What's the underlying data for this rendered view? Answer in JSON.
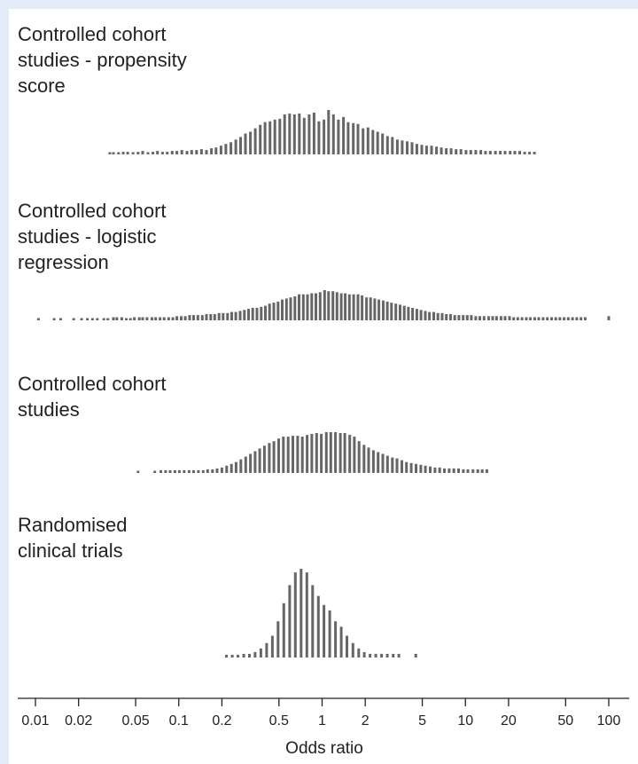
{
  "chart_data": {
    "type": "bar",
    "xlabel": "Odds ratio",
    "x_scale": "log",
    "xlim": [
      0.01,
      100
    ],
    "tick_labels": [
      "0.01",
      "0.02",
      "0.05",
      "0.1",
      "0.2",
      "0.5",
      "1",
      "2",
      "5",
      "10",
      "20",
      "50",
      "100"
    ],
    "tick_values": [
      0.01,
      0.02,
      0.05,
      0.1,
      0.2,
      0.5,
      1,
      2,
      5,
      10,
      20,
      50,
      100
    ],
    "bar_color": "#666666",
    "panels": [
      {
        "title": "Controlled cohort studies - propensity score",
        "title_lines": [
          "Controlled cohort",
          "studies - propensity",
          "score"
        ],
        "x": [
          0.033,
          0.035,
          0.038,
          0.041,
          0.044,
          0.048,
          0.052,
          0.056,
          0.061,
          0.066,
          0.071,
          0.077,
          0.083,
          0.09,
          0.097,
          0.105,
          0.114,
          0.123,
          0.133,
          0.144,
          0.156,
          0.169,
          0.182,
          0.197,
          0.213,
          0.231,
          0.25,
          0.27,
          0.292,
          0.316,
          0.342,
          0.37,
          0.4,
          0.433,
          0.468,
          0.507,
          0.548,
          0.593,
          0.641,
          0.694,
          0.75,
          0.812,
          0.878,
          0.95,
          1.03,
          1.11,
          1.2,
          1.3,
          1.41,
          1.52,
          1.65,
          1.78,
          1.93,
          2.09,
          2.26,
          2.44,
          2.64,
          2.86,
          3.09,
          3.35,
          3.62,
          3.92,
          4.24,
          4.58,
          4.96,
          5.36,
          5.8,
          6.28,
          6.79,
          7.35,
          7.95,
          8.6,
          9.3,
          10.1,
          10.9,
          11.8,
          12.8,
          13.8,
          14.9,
          16.2,
          17.5,
          18.9,
          20.5,
          22.1,
          23.9,
          25.9,
          28.0,
          30.3
        ],
        "values": [
          2,
          2,
          2,
          3,
          3,
          2,
          3,
          4,
          2,
          3,
          4,
          3,
          3,
          4,
          4,
          5,
          4,
          5,
          5,
          6,
          5,
          7,
          8,
          10,
          12,
          14,
          17,
          20,
          24,
          26,
          30,
          34,
          37,
          38,
          40,
          41,
          46,
          47,
          46,
          47,
          42,
          46,
          48,
          38,
          40,
          51,
          46,
          40,
          43,
          37,
          36,
          35,
          30,
          31,
          28,
          26,
          24,
          21,
          20,
          17,
          16,
          15,
          14,
          12,
          11,
          10,
          10,
          9,
          8,
          7,
          7,
          6,
          6,
          5,
          5,
          5,
          5,
          4,
          4,
          4,
          4,
          4,
          4,
          4,
          4,
          3,
          3,
          3
        ]
      },
      {
        "title": "Controlled cohort studies - logistic regression",
        "title_lines": [
          "Controlled cohort",
          "studies - logistic",
          "regression"
        ],
        "x": [
          0.0105,
          0.0135,
          0.015,
          0.0185,
          0.021,
          0.023,
          0.025,
          0.027,
          0.03,
          0.032,
          0.035,
          0.037,
          0.04,
          0.043,
          0.046,
          0.049,
          0.053,
          0.056,
          0.06,
          0.065,
          0.069,
          0.074,
          0.079,
          0.085,
          0.091,
          0.097,
          0.104,
          0.111,
          0.119,
          0.127,
          0.136,
          0.146,
          0.156,
          0.167,
          0.178,
          0.191,
          0.204,
          0.219,
          0.234,
          0.25,
          0.268,
          0.287,
          0.307,
          0.328,
          0.351,
          0.376,
          0.402,
          0.43,
          0.46,
          0.493,
          0.527,
          0.564,
          0.603,
          0.646,
          0.691,
          0.739,
          0.791,
          0.846,
          0.905,
          0.969,
          1.04,
          1.11,
          1.19,
          1.27,
          1.36,
          1.45,
          1.55,
          1.66,
          1.78,
          1.9,
          2.04,
          2.18,
          2.33,
          2.49,
          2.67,
          2.85,
          3.05,
          3.27,
          3.5,
          3.74,
          4.0,
          4.28,
          4.58,
          4.9,
          5.25,
          5.61,
          6.01,
          6.43,
          6.88,
          7.36,
          7.87,
          8.42,
          9.01,
          9.64,
          10.3,
          11.0,
          11.8,
          12.6,
          13.5,
          14.5,
          15.5,
          16.5,
          17.7,
          18.9,
          20.3,
          21.7,
          23.2,
          24.8,
          26.6,
          28.4,
          30.4,
          32.5,
          34.8,
          37.3,
          39.9,
          42.7,
          45.6,
          48.8,
          52.2,
          55.9,
          59.8,
          64.0,
          68.5,
          100.0
        ],
        "values": [
          2,
          2,
          2,
          2,
          2,
          2,
          2,
          2,
          2,
          2,
          3,
          3,
          3,
          2,
          2,
          3,
          3,
          3,
          3,
          3,
          3,
          3,
          3,
          3,
          3,
          4,
          4,
          4,
          5,
          5,
          5,
          5,
          6,
          6,
          6,
          7,
          7,
          7,
          8,
          8,
          9,
          10,
          11,
          12,
          12,
          13,
          14,
          16,
          17,
          18,
          20,
          21,
          22,
          23,
          25,
          25,
          25,
          26,
          26,
          27,
          29,
          28,
          28,
          27,
          26,
          26,
          25,
          25,
          25,
          24,
          22,
          22,
          21,
          20,
          19,
          18,
          17,
          16,
          15,
          14,
          13,
          12,
          11,
          10,
          9,
          8,
          8,
          7,
          7,
          6,
          6,
          5,
          5,
          5,
          5,
          5,
          4,
          4,
          4,
          4,
          4,
          4,
          4,
          4,
          4,
          3,
          3,
          3,
          3,
          3,
          3,
          3,
          3,
          3,
          3,
          3,
          3,
          3,
          3,
          3,
          3,
          3,
          3,
          4
        ]
      },
      {
        "title": "Controlled cohort studies",
        "title_lines": [
          "Controlled cohort",
          "studies"
        ],
        "x": [
          0.052,
          0.068,
          0.075,
          0.081,
          0.087,
          0.094,
          0.101,
          0.109,
          0.118,
          0.127,
          0.137,
          0.148,
          0.159,
          0.172,
          0.185,
          0.2,
          0.216,
          0.233,
          0.251,
          0.271,
          0.293,
          0.316,
          0.341,
          0.367,
          0.396,
          0.428,
          0.461,
          0.498,
          0.537,
          0.58,
          0.625,
          0.675,
          0.728,
          0.786,
          0.848,
          0.915,
          0.987,
          1.07,
          1.15,
          1.24,
          1.34,
          1.44,
          1.56,
          1.68,
          1.81,
          1.96,
          2.11,
          2.28,
          2.46,
          2.65,
          2.86,
          3.09,
          3.33,
          3.6,
          3.88,
          4.19,
          4.52,
          4.88,
          5.26,
          5.68,
          6.13,
          6.61,
          7.13,
          7.7,
          8.3,
          8.96,
          9.67,
          10.4,
          11.3,
          12.2,
          13.1,
          14.1
        ],
        "values": [
          2,
          2,
          3,
          3,
          3,
          3,
          3,
          3,
          3,
          3,
          3,
          3,
          4,
          4,
          5,
          6,
          8,
          10,
          12,
          15,
          18,
          21,
          24,
          27,
          30,
          33,
          35,
          38,
          40,
          40,
          41,
          41,
          40,
          42,
          43,
          44,
          43,
          45,
          45,
          45,
          44,
          44,
          42,
          40,
          35,
          31,
          28,
          25,
          23,
          21,
          19,
          17,
          16,
          14,
          12,
          11,
          10,
          9,
          8,
          7,
          6,
          6,
          5,
          5,
          5,
          5,
          4,
          4,
          4,
          4,
          4,
          4
        ]
      },
      {
        "title": "Randomised clinical trials",
        "title_lines": [
          "Randomised",
          "clinical trials"
        ],
        "x": [
          0.215,
          0.236,
          0.259,
          0.284,
          0.311,
          0.341,
          0.374,
          0.41,
          0.45,
          0.493,
          0.541,
          0.594,
          0.651,
          0.714,
          0.783,
          0.859,
          0.942,
          1.03,
          1.13,
          1.24,
          1.36,
          1.49,
          1.64,
          1.8,
          1.97,
          2.16,
          2.37,
          2.6,
          2.85,
          3.13,
          3.43,
          4.5
        ],
        "values": [
          3,
          3,
          3,
          4,
          4,
          6,
          10,
          16,
          24,
          40,
          60,
          80,
          94,
          98,
          94,
          80,
          68,
          58,
          52,
          40,
          34,
          24,
          16,
          10,
          6,
          4,
          4,
          4,
          4,
          4,
          4,
          4
        ]
      }
    ]
  }
}
